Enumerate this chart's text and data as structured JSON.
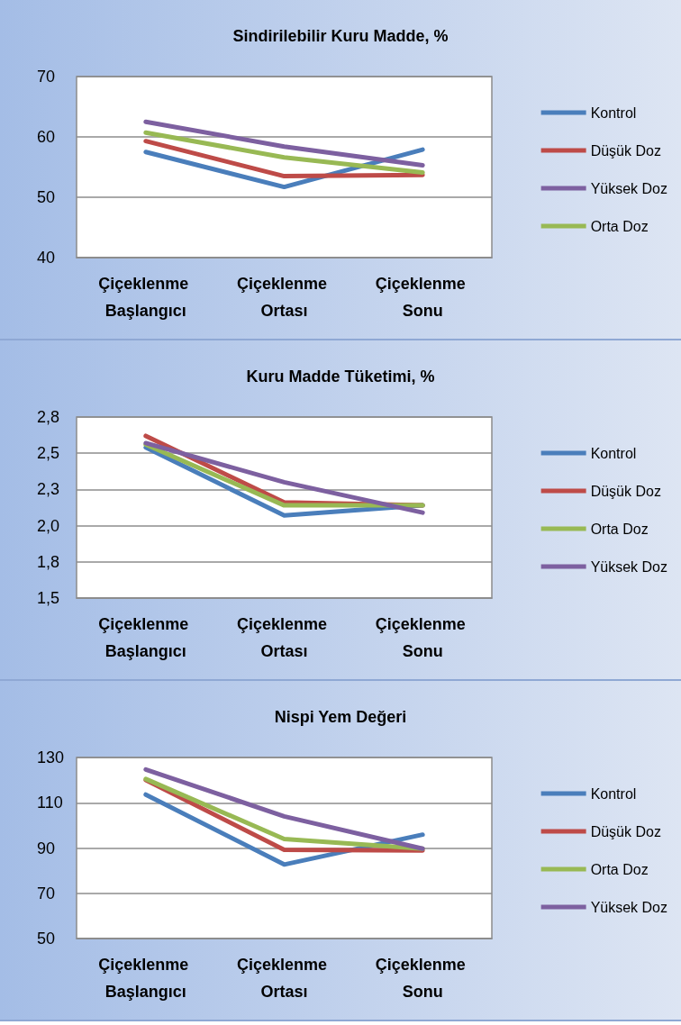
{
  "chart_data": [
    {
      "type": "line",
      "title": "Sindirilebilir Kuru Madde, %",
      "categories": [
        "Çiçeklenme Başlangıcı",
        "Çiçeklenme Ortası",
        "Çiçeklenme Sonu"
      ],
      "ylim": [
        40,
        70
      ],
      "yticks": [
        40,
        50,
        60,
        70
      ],
      "grid": "y",
      "legend": "right",
      "marker": "none",
      "series": [
        {
          "name": "Kontrol",
          "color": "#4a7ebb",
          "values": [
            57.5,
            51.7,
            57.9
          ]
        },
        {
          "name": "Düşük Doz",
          "color": "#be4b48",
          "values": [
            59.3,
            53.5,
            53.7
          ]
        },
        {
          "name": "Yüksek Doz",
          "color": "#7d60a0",
          "values": [
            62.5,
            58.4,
            55.3
          ]
        },
        {
          "name": "Orta Doz",
          "color": "#98b954",
          "values": [
            60.7,
            56.6,
            54.1
          ]
        }
      ]
    },
    {
      "type": "line",
      "title": "Kuru Madde Tüketimi, %",
      "categories": [
        "Çiçeklenme Başlangıcı",
        "Çiçeklenme Ortası",
        "Çiçeklenme Sonu"
      ],
      "ylim": [
        1.5,
        2.75
      ],
      "yticks": [
        {
          "value": 1.5,
          "label": "1,5"
        },
        {
          "value": 1.75,
          "label": "1,8"
        },
        {
          "value": 2,
          "label": "2,0"
        },
        {
          "value": 2.25,
          "label": "2,3"
        },
        {
          "value": 2.5,
          "label": "2,5"
        },
        {
          "value": 2.75,
          "label": "2,8"
        }
      ],
      "grid": "y",
      "legend": "right",
      "marker": "none",
      "series": [
        {
          "name": "Kontrol",
          "color": "#4a7ebb",
          "values": [
            2.54,
            2.07,
            2.14
          ]
        },
        {
          "name": "Düşük Doz",
          "color": "#be4b48",
          "values": [
            2.62,
            2.16,
            2.14
          ]
        },
        {
          "name": "Orta Doz",
          "color": "#98b954",
          "values": [
            2.56,
            2.14,
            2.14
          ]
        },
        {
          "name": "Yüksek Doz",
          "color": "#7d60a0",
          "values": [
            2.57,
            2.3,
            2.09
          ]
        }
      ]
    },
    {
      "type": "line",
      "title": "Nispi Yem Değeri",
      "categories": [
        "Çiçeklenme Başlangıcı",
        "Çiçeklenme Ortası",
        "Çiçeklenme Sonu"
      ],
      "ylim": [
        50,
        130
      ],
      "yticks": [
        50,
        70,
        90,
        110,
        130
      ],
      "grid": "y",
      "legend": "right",
      "marker": "none",
      "series": [
        {
          "name": "Kontrol",
          "color": "#4a7ebb",
          "values": [
            113.6,
            82.7,
            95.9
          ]
        },
        {
          "name": "Düşük Doz",
          "color": "#be4b48",
          "values": [
            120,
            89.2,
            88.9
          ]
        },
        {
          "name": "Orta Doz",
          "color": "#98b954",
          "values": [
            120.5,
            94,
            89.7
          ]
        },
        {
          "name": "Yüksek Doz",
          "color": "#7d60a0",
          "values": [
            124.7,
            104,
            89.7
          ]
        }
      ]
    }
  ]
}
